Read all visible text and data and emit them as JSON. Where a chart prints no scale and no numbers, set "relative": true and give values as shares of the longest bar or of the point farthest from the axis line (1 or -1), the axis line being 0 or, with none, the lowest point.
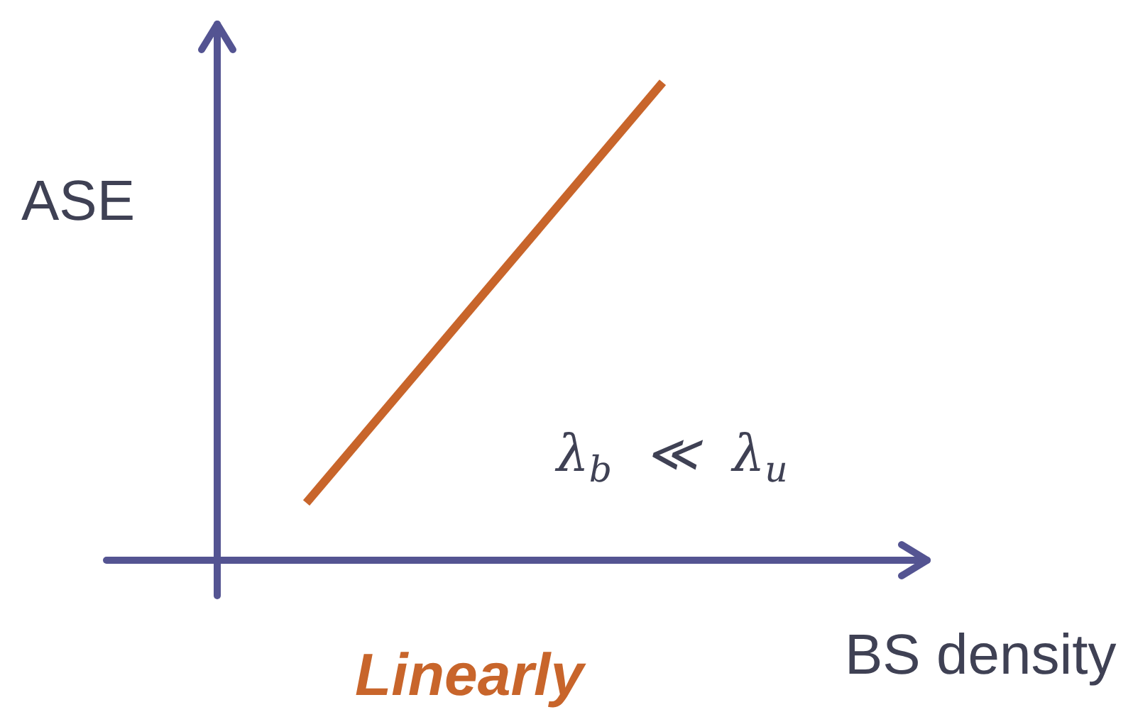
{
  "chart_data": {
    "type": "line",
    "relative": true,
    "xlabel": "BS density",
    "ylabel": "ASE",
    "annotations": [
      "λ$_{b}$ ≪ λ$_{u}$",
      "Linearly"
    ],
    "categories": [
      null,
      null,
      null,
      null
    ],
    "series": [
      {
        "color": "#c8652b",
        "values": [
          0.12,
          0.56,
          1,
          null
        ]
      }
    ],
    "marker": "none"
  }
}
